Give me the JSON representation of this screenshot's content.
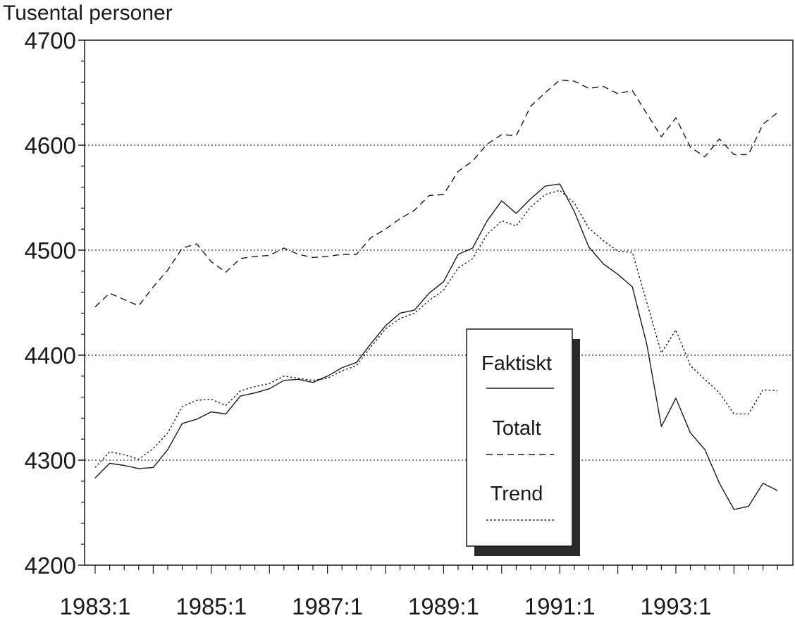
{
  "chart_data": {
    "type": "line",
    "ylabel": "Tusental personer",
    "xlabel": "",
    "ylim": [
      4200,
      4700
    ],
    "yticks": [
      "4200",
      "4300",
      "4400",
      "4500",
      "4600",
      "4700"
    ],
    "xticks": [
      "1983:1",
      "1985:1",
      "1987:1",
      "1989:1",
      "1991:1",
      "1993:1"
    ],
    "grid": "horizontal dotted",
    "legend_position": "inside-bottom-right",
    "x_start": "1983:1",
    "x_end": "1994:4",
    "series": [
      {
        "name": "Faktiskt",
        "style": "solid",
        "values": [
          4283,
          4297,
          4295,
          4292,
          4293,
          4310,
          4335,
          4339,
          4346,
          4344,
          4361,
          4364,
          4368,
          4376,
          4377,
          4374,
          4380,
          4388,
          4393,
          4411,
          4428,
          4440,
          4443,
          4459,
          4470,
          4496,
          4502,
          4528,
          4547,
          4535,
          4549,
          4561,
          4563,
          4537,
          4503,
          4487,
          4477,
          4465,
          4410,
          4332,
          4359,
          4326,
          4310,
          4278,
          4253,
          4256,
          4278,
          4271
        ]
      },
      {
        "name": "Totalt",
        "style": "dashed",
        "values": [
          4446,
          4459,
          4453,
          4447,
          4465,
          4481,
          4502,
          4506,
          4489,
          4479,
          4492,
          4494,
          4495,
          4502,
          4496,
          4493,
          4494,
          4496,
          4496,
          4512,
          4520,
          4530,
          4538,
          4552,
          4553,
          4575,
          4585,
          4601,
          4610,
          4609,
          4637,
          4650,
          4662,
          4661,
          4654,
          4656,
          4649,
          4652,
          4630,
          4608,
          4626,
          4598,
          4589,
          4606,
          4591,
          4591,
          4620,
          4631
        ]
      },
      {
        "name": "Trend",
        "style": "dotted",
        "values": [
          4293,
          4308,
          4305,
          4301,
          4311,
          4326,
          4351,
          4357,
          4358,
          4352,
          4366,
          4370,
          4373,
          4380,
          4378,
          4376,
          4378,
          4385,
          4390,
          4408,
          4425,
          4435,
          4440,
          4452,
          4462,
          4483,
          4492,
          4515,
          4528,
          4523,
          4541,
          4553,
          4557,
          4545,
          4521,
          4509,
          4499,
          4498,
          4450,
          4402,
          4424,
          4390,
          4377,
          4364,
          4344,
          4344,
          4367,
          4366
        ]
      }
    ]
  }
}
